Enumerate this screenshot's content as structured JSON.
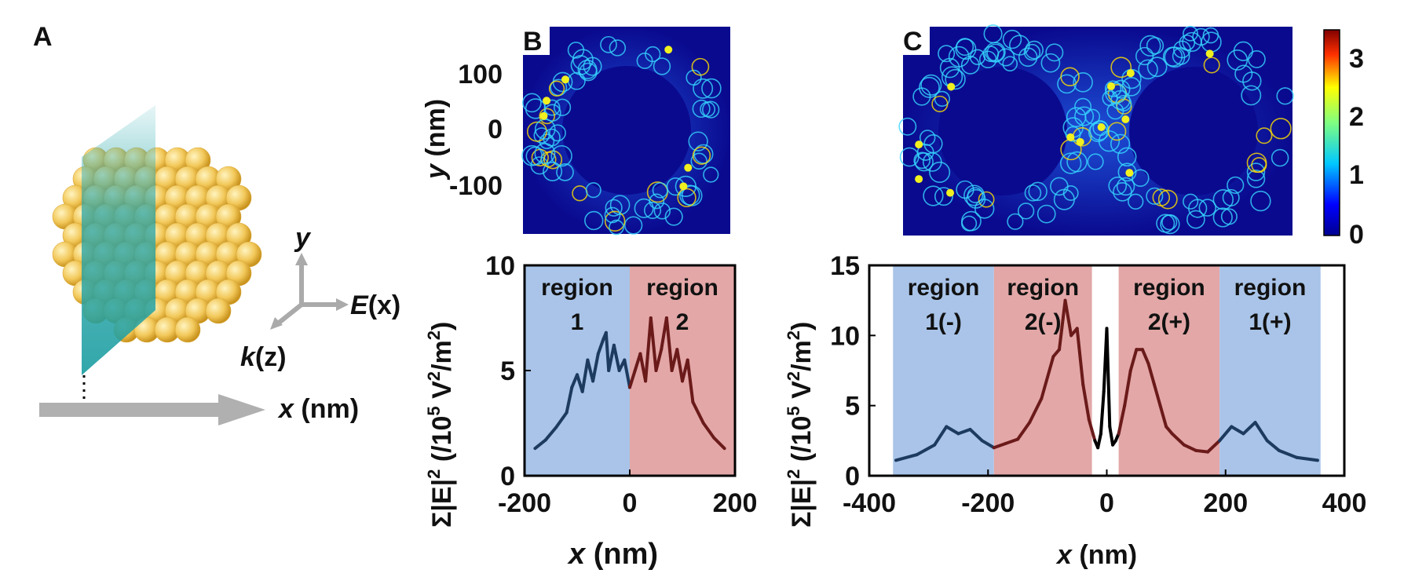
{
  "panels": {
    "a": {
      "letter": "A",
      "axis_y": "y",
      "axis_e": "E",
      "axis_e_arg": "(x)",
      "axis_k": "k",
      "axis_k_arg": "(z)",
      "xlabel": "x",
      "xunit": " (nm)"
    },
    "b": {
      "letter": "B"
    },
    "c": {
      "letter": "C"
    }
  },
  "heatmap": {
    "ylabel": "y",
    "yunit": " (nm)",
    "yticks": [
      "100",
      "0",
      "-100"
    ],
    "colorbar_ticks": [
      "3",
      "2",
      "1",
      "0"
    ],
    "colors": {
      "background": "#0a0a8f",
      "hot": "#ffe000",
      "mid": "#30d8ff"
    }
  },
  "chart_data": [
    {
      "type": "line",
      "ylabel_sym": "Σ|E|",
      "ylabel_unit": "(/10",
      "ylabel_unit2": " V",
      "ylabel_unit3": "/m",
      "ylabel_end": ")",
      "xlabel": "x",
      "xunit": " (nm)",
      "xlim": [
        -200,
        200
      ],
      "ylim": [
        0,
        10
      ],
      "xticks": [
        "-200",
        "0",
        "200"
      ],
      "yticks": [
        "0",
        "5",
        "10"
      ],
      "regions": [
        {
          "x0": -200,
          "x1": 0,
          "color": "#a9c4e8",
          "line1": "region",
          "line2": "1"
        },
        {
          "x0": 0,
          "x1": 200,
          "color": "#e3a7a7",
          "line1": "region",
          "line2": "2"
        }
      ],
      "series": [
        {
          "x": [
            -180,
            -160,
            -140,
            -120,
            -110,
            -100,
            -90,
            -80,
            -70,
            -60,
            -50,
            -45,
            -40,
            -30,
            -20,
            -10,
            0,
            10,
            20,
            30,
            40,
            50,
            60,
            70,
            80,
            90,
            100,
            110,
            120,
            140,
            160,
            180
          ],
          "y": [
            1.3,
            1.7,
            2.3,
            3.0,
            4.2,
            4.8,
            4.0,
            5.5,
            4.5,
            5.8,
            6.5,
            6.8,
            5.0,
            6.2,
            5.0,
            5.5,
            4.2,
            5.0,
            5.8,
            4.5,
            7.5,
            5.0,
            6.0,
            7.5,
            5.0,
            6.0,
            4.5,
            5.5,
            3.5,
            2.5,
            1.8,
            1.3
          ]
        }
      ]
    },
    {
      "type": "line",
      "ylabel_sym": "Σ|E|",
      "ylabel_unit": "(/10",
      "ylabel_unit2": " V",
      "ylabel_unit3": "/m",
      "ylabel_end": ")",
      "xlabel": "x",
      "xunit": " (nm)",
      "xlim": [
        -400,
        400
      ],
      "ylim": [
        0,
        15
      ],
      "xticks": [
        "-400",
        "-200",
        "0",
        "200",
        "400"
      ],
      "yticks": [
        "0",
        "5",
        "10",
        "15"
      ],
      "regions": [
        {
          "x0": -360,
          "x1": -190,
          "color": "#a9c4e8",
          "line1": "region",
          "line2": "1(-)"
        },
        {
          "x0": -190,
          "x1": -25,
          "color": "#e3a7a7",
          "line1": "region",
          "line2": "2(-)"
        },
        {
          "x0": 20,
          "x1": 190,
          "color": "#e3a7a7",
          "line1": "region",
          "line2": "2(+)"
        },
        {
          "x0": 190,
          "x1": 360,
          "color": "#a9c4e8",
          "line1": "region",
          "line2": "1(+)"
        }
      ],
      "series": [
        {
          "x": [
            -355,
            -320,
            -290,
            -270,
            -250,
            -230,
            -210,
            -190,
            -170,
            -150,
            -130,
            -110,
            -90,
            -80,
            -70,
            -60,
            -50,
            -40,
            -30,
            -20,
            -15,
            -10,
            -5,
            0,
            5,
            10,
            15,
            20,
            30,
            40,
            50,
            60,
            70,
            80,
            90,
            100,
            110,
            130,
            150,
            170,
            190,
            210,
            230,
            250,
            270,
            290,
            320,
            355
          ],
          "y": [
            1.1,
            1.5,
            2.2,
            3.5,
            3.0,
            3.3,
            2.5,
            2.0,
            2.3,
            2.6,
            3.8,
            5.5,
            8.5,
            9.0,
            12.5,
            10.0,
            10.5,
            6.5,
            4.0,
            2.5,
            2.0,
            3.0,
            6.0,
            10.5,
            3.5,
            2.2,
            2.5,
            3.0,
            5.0,
            7.5,
            9.0,
            9.0,
            8.0,
            6.5,
            5.0,
            3.5,
            3.0,
            2.2,
            1.8,
            1.7,
            2.5,
            3.5,
            3.0,
            3.8,
            2.5,
            1.8,
            1.3,
            1.1
          ]
        }
      ]
    }
  ]
}
